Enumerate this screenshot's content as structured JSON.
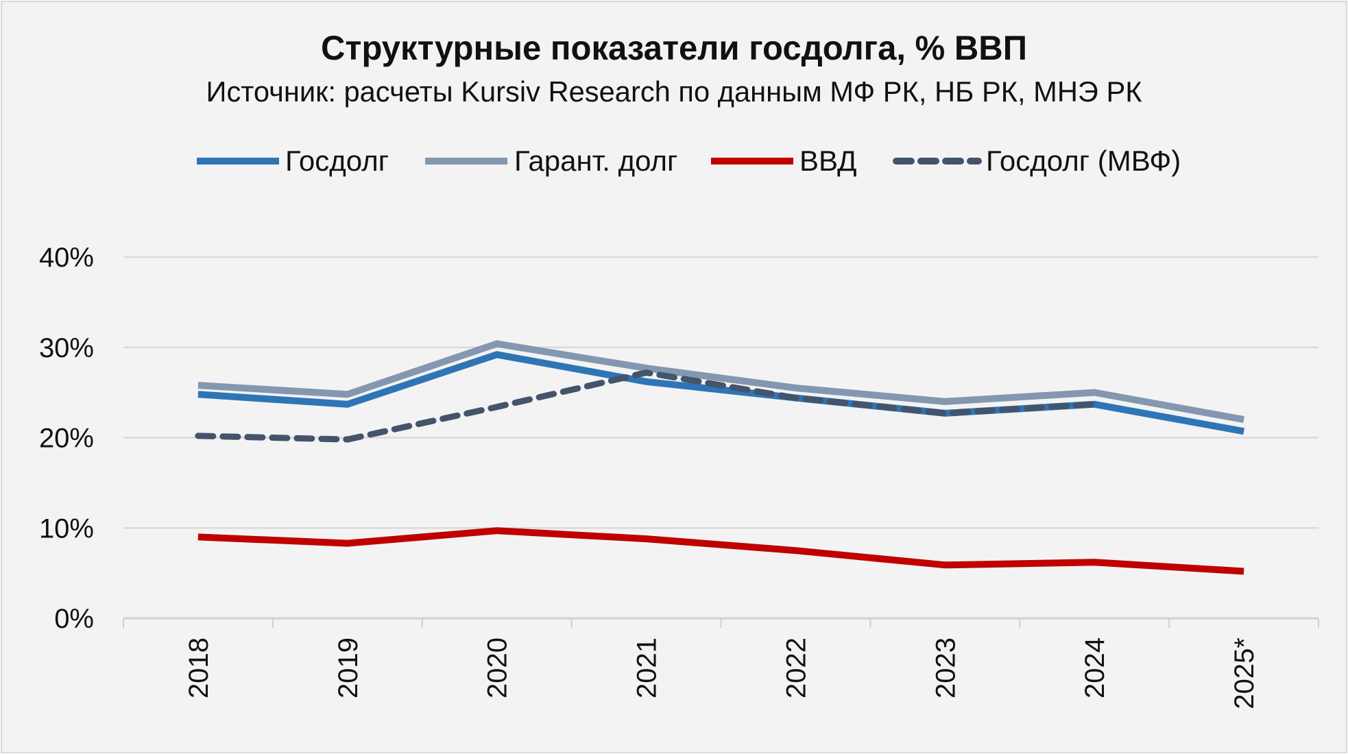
{
  "chart_data": {
    "type": "line",
    "title": "Структурные показатели госдолга, % ВВП",
    "subtitle": "Источник: расчеты Kursiv Research по данным МФ РК, НБ РК, МНЭ РК",
    "xlabel": "",
    "ylabel": "",
    "categories": [
      "2018",
      "2019",
      "2020",
      "2021",
      "2022",
      "2023",
      "2024",
      "2025*"
    ],
    "ylim": [
      0,
      40
    ],
    "yticks": [
      0,
      10,
      20,
      30,
      40
    ],
    "ytick_labels": [
      "0%",
      "10%",
      "20%",
      "30%",
      "40%"
    ],
    "grid": true,
    "legend_position": "top",
    "series": [
      {
        "name": "Госдолг",
        "color": "#2e75b6",
        "dash": false,
        "values": [
          24.8,
          23.7,
          29.2,
          26.2,
          24.4,
          22.7,
          23.7,
          20.7
        ]
      },
      {
        "name": "Гарант. долг",
        "color": "#8497b0",
        "dash": false,
        "values": [
          25.8,
          24.8,
          30.4,
          27.7,
          25.5,
          24.0,
          25.0,
          22.0
        ]
      },
      {
        "name": "ВВД",
        "color": "#c00000",
        "dash": false,
        "values": [
          9.0,
          8.3,
          9.7,
          8.8,
          7.5,
          5.9,
          6.2,
          5.2
        ]
      },
      {
        "name": "Госдолг (МВФ)",
        "color": "#44546a",
        "dash": true,
        "values": [
          20.2,
          19.8,
          23.4,
          27.2,
          24.4,
          22.7,
          23.7,
          null
        ]
      }
    ]
  }
}
